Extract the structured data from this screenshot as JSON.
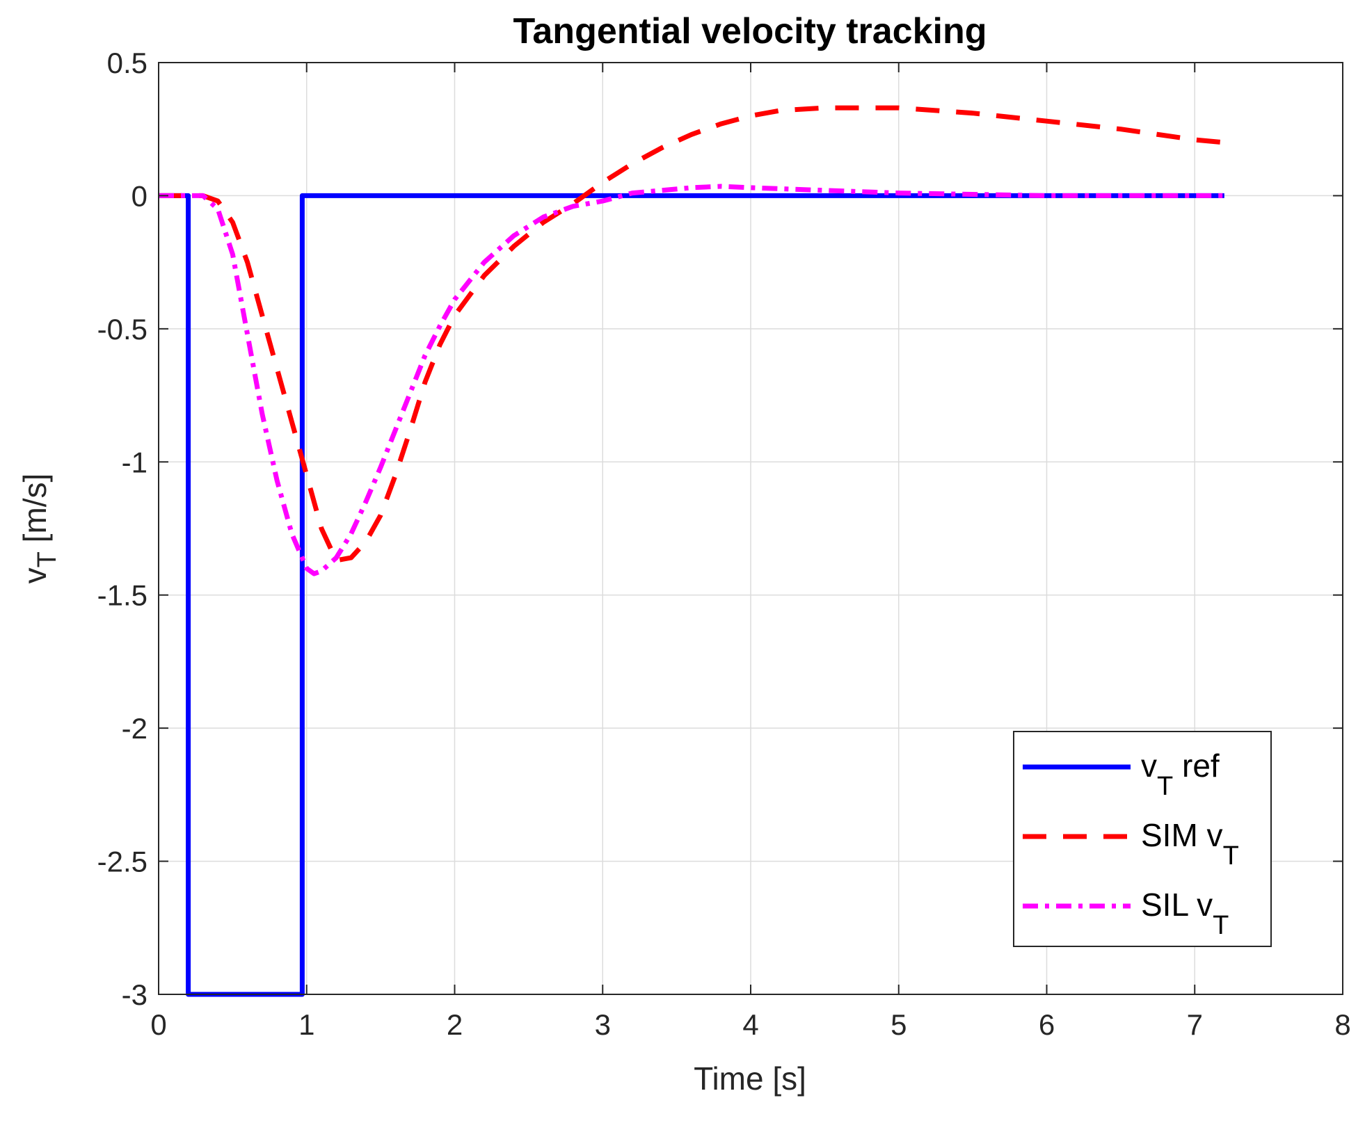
{
  "chart_data": {
    "type": "line",
    "title": "Tangential velocity tracking",
    "xlabel": "Time [s]",
    "ylabel": "v",
    "ylabel_sub": "T",
    "ylabel_unit": " [m/s]",
    "xlim": [
      0,
      8
    ],
    "ylim": [
      -3,
      0.5
    ],
    "xticks": [
      0,
      1,
      2,
      3,
      4,
      5,
      6,
      7,
      8
    ],
    "xtick_labels": [
      "0",
      "1",
      "2",
      "3",
      "4",
      "5",
      "6",
      "7",
      "8"
    ],
    "yticks": [
      0.5,
      0,
      -0.5,
      -1,
      -1.5,
      -2,
      -2.5,
      -3
    ],
    "ytick_labels": [
      "0.5",
      "0",
      "-0.5",
      "-1",
      "-1.5",
      "-2",
      "-2.5",
      "-3"
    ],
    "grid": true,
    "legend_position": "bottom-right",
    "series": [
      {
        "name": "v_T ref",
        "legend_main": "v",
        "legend_sub": "T",
        "legend_after": " ref",
        "color": "#0000ff",
        "style": "solid",
        "x": [
          0,
          0.2,
          0.2,
          0.97,
          0.97,
          7.2
        ],
        "y": [
          0,
          0,
          -3,
          -3,
          0,
          0
        ]
      },
      {
        "name": "SIM v_T",
        "legend_main": "SIM v",
        "legend_sub": "T",
        "legend_after": "",
        "color": "#ff0000",
        "style": "dashed",
        "x": [
          0,
          0.3,
          0.4,
          0.5,
          0.6,
          0.7,
          0.8,
          0.9,
          1.0,
          1.1,
          1.2,
          1.3,
          1.4,
          1.5,
          1.6,
          1.7,
          1.8,
          1.9,
          2.0,
          2.2,
          2.4,
          2.6,
          2.8,
          3.0,
          3.2,
          3.4,
          3.6,
          3.8,
          4.0,
          4.2,
          4.5,
          5.0,
          5.5,
          6.0,
          6.5,
          7.0,
          7.2
        ],
        "y": [
          0,
          0,
          -0.02,
          -0.1,
          -0.25,
          -0.45,
          -0.65,
          -0.85,
          -1.05,
          -1.25,
          -1.37,
          -1.36,
          -1.3,
          -1.2,
          -1.05,
          -0.88,
          -0.7,
          -0.56,
          -0.45,
          -0.3,
          -0.19,
          -0.1,
          -0.03,
          0.05,
          0.12,
          0.18,
          0.23,
          0.27,
          0.3,
          0.32,
          0.33,
          0.33,
          0.31,
          0.28,
          0.25,
          0.21,
          0.2
        ]
      },
      {
        "name": "SIL v_T",
        "legend_main": "SIL v",
        "legend_sub": "T",
        "legend_after": "",
        "color": "#ff00ff",
        "style": "dashdot",
        "x": [
          0,
          0.25,
          0.3,
          0.4,
          0.5,
          0.6,
          0.7,
          0.8,
          0.9,
          1.0,
          1.05,
          1.1,
          1.2,
          1.3,
          1.4,
          1.5,
          1.6,
          1.7,
          1.8,
          1.9,
          2.0,
          2.2,
          2.4,
          2.6,
          2.8,
          3.0,
          3.2,
          3.4,
          3.6,
          3.8,
          4.0,
          4.5,
          5.0,
          5.5,
          6.0,
          6.5,
          7.2
        ],
        "y": [
          0,
          0,
          0,
          -0.05,
          -0.22,
          -0.52,
          -0.82,
          -1.07,
          -1.27,
          -1.4,
          -1.42,
          -1.41,
          -1.36,
          -1.27,
          -1.15,
          -1.02,
          -0.88,
          -0.74,
          -0.6,
          -0.49,
          -0.39,
          -0.25,
          -0.15,
          -0.08,
          -0.04,
          -0.02,
          0.01,
          0.02,
          0.03,
          0.035,
          0.03,
          0.02,
          0.01,
          0.005,
          0,
          0,
          0
        ]
      }
    ]
  }
}
